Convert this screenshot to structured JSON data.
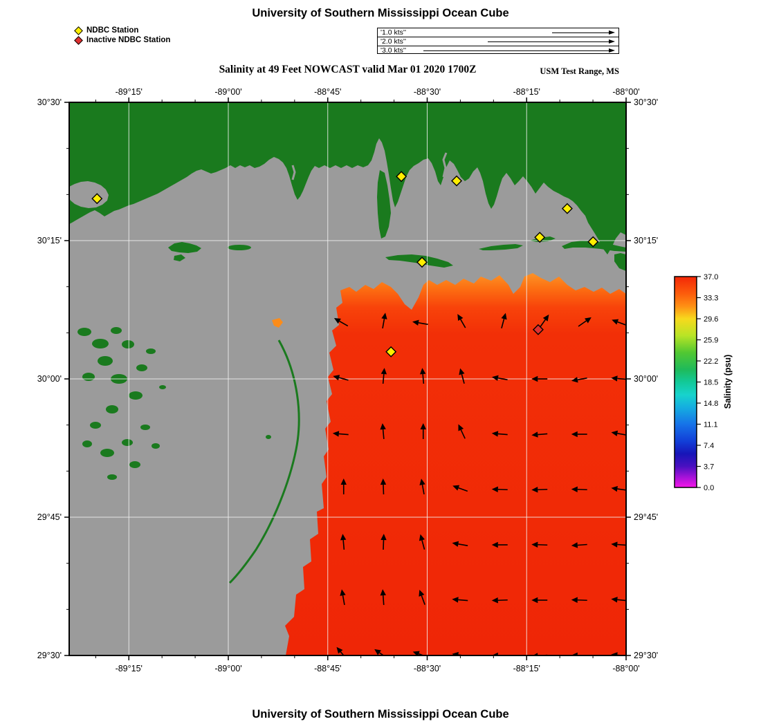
{
  "header": {
    "title": "University of Southern Mississippi Ocean Cube",
    "subtitle": "Salinity at 49 Feet NOWCAST valid Mar 01 2020 1700Z",
    "region": "USM Test Range, MS",
    "footer": "University of Southern Mississippi Ocean Cube"
  },
  "legend": {
    "active_label": "NDBC Station",
    "inactive_label": "Inactive NDBC Station",
    "active_color": "#ffee00",
    "inactive_color": "#e03030"
  },
  "vector_scale": {
    "rows": [
      {
        "label": "'1.0 kts''",
        "kts": 1.0
      },
      {
        "label": "'2.0 kts''",
        "kts": 2.0
      },
      {
        "label": "'3.0 kts''",
        "kts": 3.0
      }
    ]
  },
  "axes": {
    "lon_ticks": [
      {
        "deg": -89.25,
        "label": "-89°15'"
      },
      {
        "deg": -89.0,
        "label": "-89°00'"
      },
      {
        "deg": -88.75,
        "label": "-88°45'"
      },
      {
        "deg": -88.5,
        "label": "-88°30'"
      },
      {
        "deg": -88.25,
        "label": "-88°15'"
      },
      {
        "deg": -88.0,
        "label": "-88°00'"
      }
    ],
    "lat_ticks": [
      {
        "deg": 30.5,
        "label": "30°30'"
      },
      {
        "deg": 30.25,
        "label": "30°15'"
      },
      {
        "deg": 30.0,
        "label": "30°00'"
      },
      {
        "deg": 29.75,
        "label": "29°45'"
      },
      {
        "deg": 29.5,
        "label": "29°30'"
      }
    ]
  },
  "colorbar": {
    "label": "Salinity (psu)",
    "ticks": [
      "37.0",
      "33.3",
      "29.6",
      "25.9",
      "22.2",
      "18.5",
      "14.8",
      "11.1",
      "7.4",
      "3.7",
      "0.0"
    ],
    "min": 0.0,
    "max": 37.0
  },
  "chart_data": {
    "type": "map",
    "variable": "Salinity",
    "units": "psu",
    "depth_ft": 49,
    "valid": "Mar 01 2020 1700Z",
    "lon_range": [
      -89.4,
      -88.0
    ],
    "lat_range": [
      29.5,
      30.5
    ],
    "gulf_salinity_psu": [
      33.0,
      37.0
    ],
    "stations": [
      {
        "lon": -89.33,
        "lat": 30.326,
        "status": "active"
      },
      {
        "lon": -88.565,
        "lat": 30.366,
        "status": "active"
      },
      {
        "lon": -88.426,
        "lat": 30.358,
        "status": "active"
      },
      {
        "lon": -88.148,
        "lat": 30.308,
        "status": "active"
      },
      {
        "lon": -88.217,
        "lat": 30.256,
        "status": "active"
      },
      {
        "lon": -88.083,
        "lat": 30.248,
        "status": "active"
      },
      {
        "lon": -88.513,
        "lat": 30.211,
        "status": "active"
      },
      {
        "lon": -88.591,
        "lat": 30.049,
        "status": "active"
      },
      {
        "lon": -88.221,
        "lat": 30.089,
        "status": "inactive"
      }
    ],
    "currents": {
      "speed_kts": 0.15,
      "lons": [
        -88.71,
        -88.61,
        -88.51,
        -88.41,
        -88.31,
        -88.21,
        -88.11,
        -88.01
      ],
      "rows": [
        {
          "lat": 30.1,
          "dirs": [
            150,
            80,
            170,
            120,
            75,
            55,
            35,
            160
          ]
        },
        {
          "lat": 30.0,
          "dirs": [
            165,
            85,
            95,
            105,
            170,
            180,
            190,
            175
          ]
        },
        {
          "lat": 29.9,
          "dirs": [
            175,
            95,
            90,
            115,
            175,
            185,
            180,
            170
          ]
        },
        {
          "lat": 29.8,
          "dirs": [
            90,
            92,
            100,
            160,
            178,
            182,
            178,
            172
          ]
        },
        {
          "lat": 29.7,
          "dirs": [
            95,
            88,
            105,
            170,
            180,
            178,
            184,
            176
          ]
        },
        {
          "lat": 29.6,
          "dirs": [
            100,
            94,
            110,
            175,
            182,
            180,
            178,
            174
          ]
        },
        {
          "lat": 29.5,
          "dirs": [
            130,
            145,
            160,
            172,
            180,
            184,
            179,
            175
          ]
        }
      ]
    }
  }
}
